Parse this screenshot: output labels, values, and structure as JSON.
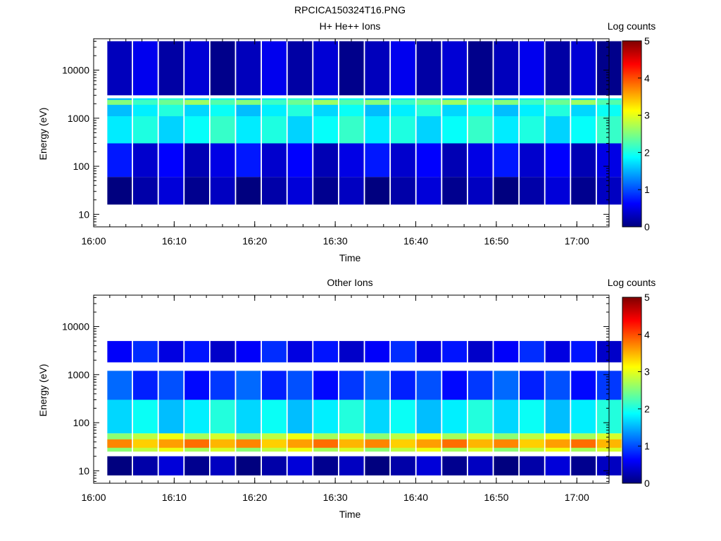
{
  "figure": {
    "title": "RPCICA150324T16.PNG"
  },
  "colorscale": {
    "stops": [
      "#00007f",
      "#0000ff",
      "#007fff",
      "#00ffff",
      "#7fff7f",
      "#ffff00",
      "#ff7f00",
      "#ff0000",
      "#7f0000"
    ]
  },
  "chart_data": [
    {
      "type": "heatmap",
      "title": "H+ He++ Ions",
      "xlabel": "Time",
      "ylabel": "Energy (eV)",
      "yscale": "log",
      "xlim": [
        "16:00",
        "17:04"
      ],
      "ylim": [
        5.5,
        45000
      ],
      "xticks": [
        "16:00",
        "16:10",
        "16:20",
        "16:30",
        "16:40",
        "16:50",
        "17:00"
      ],
      "yticks": [
        "10",
        "100",
        "1000",
        "10000"
      ],
      "colorbar": {
        "label": "Log counts",
        "range": [
          0,
          5
        ],
        "ticks": [
          "0",
          "1",
          "2",
          "3",
          "4",
          "5"
        ]
      },
      "time_bins_min": [
        1.7,
        4.9,
        8.1,
        11.3,
        14.5,
        17.7,
        20.9,
        24.1,
        27.3,
        30.5,
        33.7,
        36.9,
        40.1,
        43.3,
        46.5,
        49.7,
        52.9,
        56.1,
        59.3,
        62.5
      ],
      "cells": [
        {
          "e_lo": 1100,
          "e_hi": 2600,
          "v": 1.8
        },
        {
          "e_lo": 1900,
          "e_hi": 2400,
          "v": 2.4
        },
        {
          "e_lo": 300,
          "e_hi": 1100,
          "v": 1.9
        },
        {
          "e_lo": 60,
          "e_hi": 300,
          "v": 0.5
        },
        {
          "e_lo": 3000,
          "e_hi": 40000,
          "v": 0.3
        },
        {
          "e_lo": 16,
          "e_hi": 60,
          "v": 0.2
        }
      ]
    },
    {
      "type": "heatmap",
      "title": "Other Ions",
      "xlabel": "Time",
      "ylabel": "Energy (eV)",
      "yscale": "log",
      "xlim": [
        "16:00",
        "17:04"
      ],
      "ylim": [
        5.5,
        45000
      ],
      "xticks": [
        "16:00",
        "16:10",
        "16:20",
        "16:30",
        "16:40",
        "16:50",
        "17:00"
      ],
      "yticks": [
        "10",
        "100",
        "1000",
        "10000"
      ],
      "colorbar": {
        "label": "Log counts",
        "range": [
          0,
          5
        ],
        "ticks": [
          "0",
          "1",
          "2",
          "3",
          "4",
          "5"
        ]
      },
      "time_bins_min": [
        1.7,
        4.9,
        8.1,
        11.3,
        14.5,
        17.7,
        20.9,
        24.1,
        27.3,
        30.5,
        33.7,
        36.9,
        40.1,
        43.3,
        46.5,
        49.7,
        52.9,
        56.1,
        59.3,
        62.5
      ],
      "cells": [
        {
          "e_lo": 25,
          "e_hi": 60,
          "v": 2.8
        },
        {
          "e_lo": 30,
          "e_hi": 45,
          "v": 3.6
        },
        {
          "e_lo": 60,
          "e_hi": 300,
          "v": 1.8
        },
        {
          "e_lo": 300,
          "e_hi": 1200,
          "v": 0.9
        },
        {
          "e_lo": 1800,
          "e_hi": 5000,
          "v": 0.6
        },
        {
          "e_lo": 8,
          "e_hi": 20,
          "v": 0.2
        }
      ]
    }
  ]
}
